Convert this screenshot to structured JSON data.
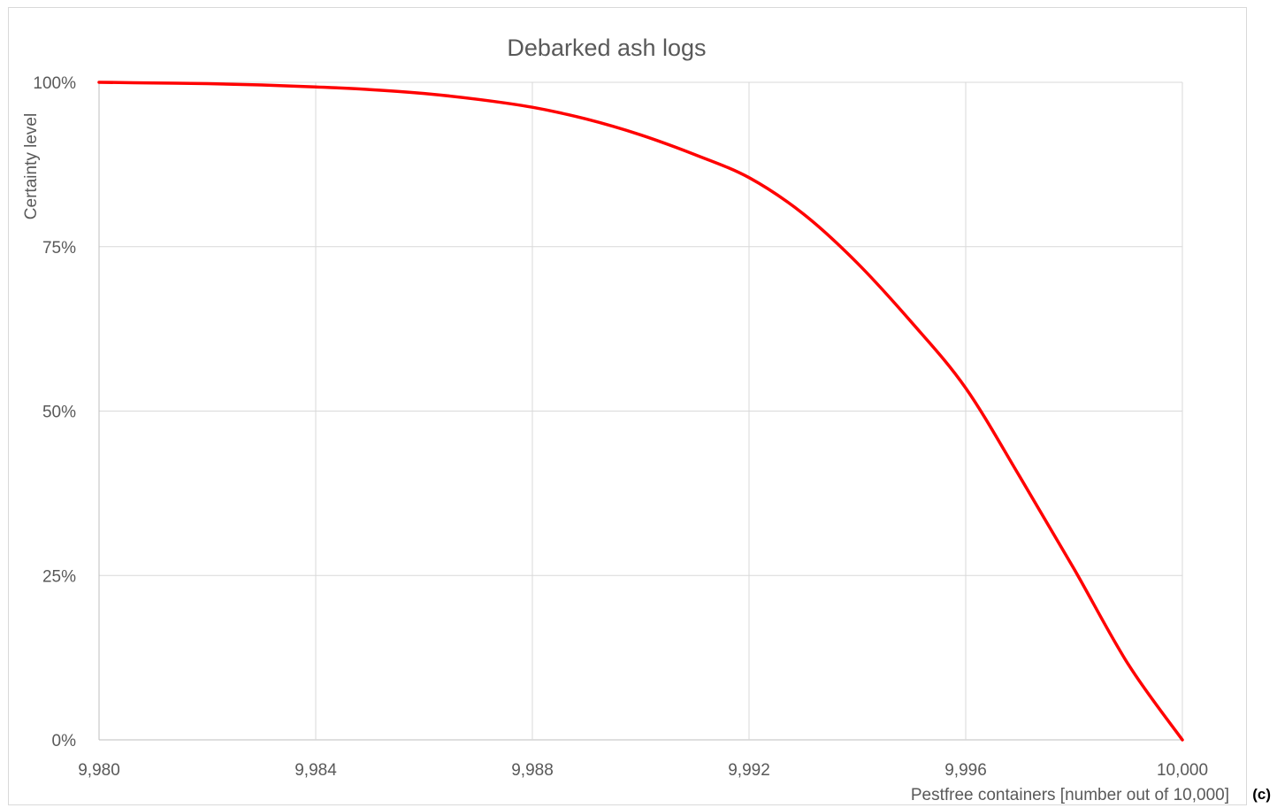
{
  "chart_data": {
    "type": "line",
    "title": "Debarked ash logs",
    "xlabel": "Pestfree containers [number out of 10,000]",
    "ylabel": "Certainty level",
    "panel_label": "(c)",
    "xlim": [
      9980,
      10000
    ],
    "ylim": [
      0,
      1
    ],
    "x_ticks": [
      9980,
      9984,
      9988,
      9992,
      9996,
      10000
    ],
    "x_tick_labels": [
      "9,980",
      "9,984",
      "9,988",
      "9,992",
      "9,996",
      "10,000"
    ],
    "y_ticks": [
      0,
      0.25,
      0.5,
      0.75,
      1
    ],
    "y_tick_labels": [
      "0%",
      "25%",
      "50%",
      "75%",
      "100%"
    ],
    "grid": true,
    "legend": "none",
    "series": [
      {
        "color": "#ff0000",
        "x": [
          9980,
          9981,
          9982,
          9983,
          9984,
          9985,
          9986,
          9987,
          9988,
          9989,
          9990,
          9991,
          9992,
          9993,
          9994,
          9995,
          9996,
          9997,
          9998,
          9999,
          10000
        ],
        "y": [
          1.0,
          0.999,
          0.998,
          0.996,
          0.993,
          0.989,
          0.983,
          0.974,
          0.962,
          0.944,
          0.92,
          0.89,
          0.855,
          0.8,
          0.725,
          0.635,
          0.535,
          0.4,
          0.26,
          0.115,
          0.0
        ]
      }
    ]
  }
}
